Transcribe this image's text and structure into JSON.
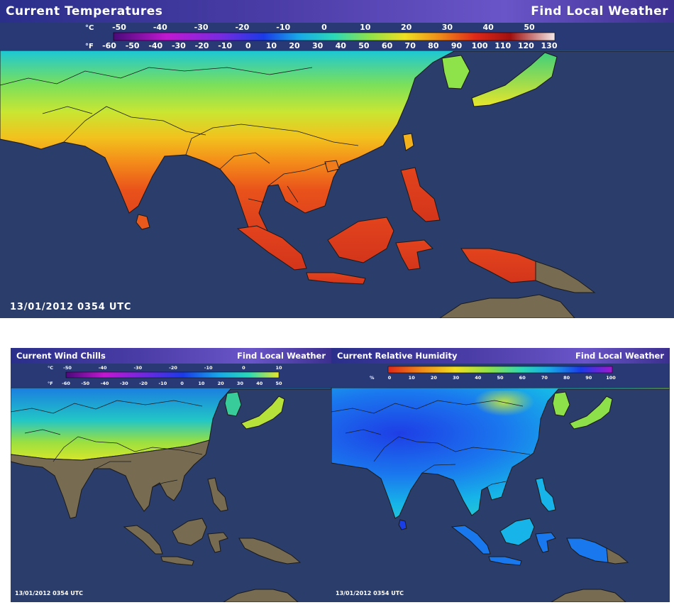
{
  "temperature_panel": {
    "title": "Current Temperatures",
    "find_local_link": "Find Local Weather",
    "celsius_unit": "°C",
    "fahrenheit_unit": "°F",
    "celsius_ticks": [
      "-50",
      "-40",
      "-30",
      "-20",
      "-10",
      "0",
      "10",
      "20",
      "30",
      "40",
      "50"
    ],
    "fahrenheit_ticks": [
      "-60",
      "-50",
      "-40",
      "-30",
      "-20",
      "-10",
      "0",
      "10",
      "20",
      "30",
      "40",
      "50",
      "60",
      "70",
      "80",
      "90",
      "100",
      "110",
      "120",
      "130"
    ],
    "timestamp": "13/01/2012 0354 UTC"
  },
  "wind_chill_panel": {
    "title": "Current Wind Chills",
    "find_local_link": "Find Local Weather",
    "celsius_unit": "°C",
    "fahrenheit_unit": "°F",
    "celsius_ticks": [
      "-50",
      "-40",
      "-30",
      "-20",
      "-10",
      "0",
      "10"
    ],
    "fahrenheit_ticks": [
      "-60",
      "-50",
      "-40",
      "-30",
      "-20",
      "-10",
      "0",
      "10",
      "20",
      "30",
      "40",
      "50"
    ],
    "timestamp": "13/01/2012 0354 UTC"
  },
  "humidity_panel": {
    "title": "Current Relative Humidity",
    "find_local_link": "Find Local Weather",
    "unit": "%",
    "ticks": [
      "0",
      "10",
      "20",
      "30",
      "40",
      "50",
      "60",
      "70",
      "80",
      "90",
      "100"
    ],
    "timestamp": "13/01/2012 0354 UTC"
  },
  "colors": {
    "ocean": "#2b3d6a",
    "land_no_data": "#776b52",
    "title_bar": "#4a3ca6"
  }
}
